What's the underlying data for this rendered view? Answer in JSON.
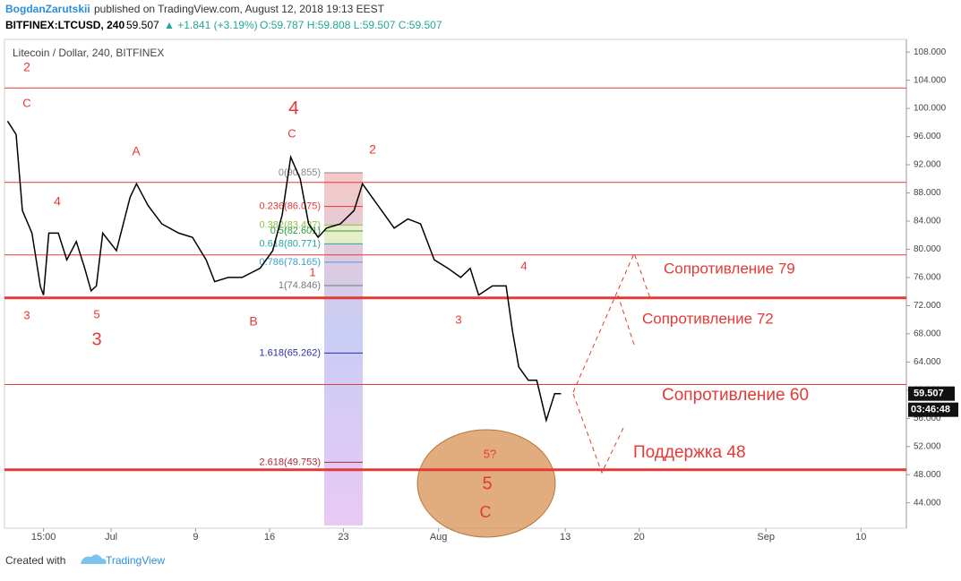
{
  "header": {
    "author": "BogdanZarutskii",
    "published": "published on TradingView.com, August 12, 2018 19:13 EEST",
    "symbol": "BITFINEX:LTCUSD, 240",
    "price": "59.507",
    "change": "▲ +1.841 (+3.19%)",
    "ohlc": "O:59.787 H:59.808 L:59.507 C:59.507"
  },
  "chart_data": {
    "type": "line",
    "title": "Litecoin / Dollar, 240, BITFINEX",
    "color": "#000000",
    "x": [
      -9.8,
      -9.0,
      -8.4,
      -7.5,
      -6.7,
      -6.4,
      -5.9,
      -5.0,
      -4.2,
      -3.3,
      -2.5,
      -1.9,
      -1.4,
      -0.8,
      0.5,
      1.8,
      2.4,
      3.5,
      4.8,
      6.4,
      7.7,
      9.0,
      9.8,
      11.1,
      12.4,
      14.1,
      15.3,
      16.2,
      17.0,
      17.9,
      18.7,
      19.6,
      20.4,
      21.7,
      23.0,
      23.8,
      24.7,
      25.9,
      26.8,
      28.1,
      29.3,
      30.6,
      31.9,
      33.1,
      34.0,
      34.8,
      36.1,
      37.4,
      38.0,
      38.6,
      39.5,
      40.3,
      41.2,
      42.0,
      42.6
    ],
    "values": [
      98.2,
      96.3,
      85.5,
      82.3,
      74.7,
      73.5,
      82.3,
      82.3,
      78.5,
      81.1,
      77.3,
      74.1,
      74.8,
      82.3,
      79.8,
      87.4,
      89.3,
      86.2,
      83.6,
      82.3,
      81.7,
      78.5,
      75.4,
      76.0,
      76.0,
      77.3,
      79.8,
      84.9,
      93.1,
      90.0,
      83.6,
      81.7,
      83.0,
      83.6,
      85.5,
      89.3,
      87.4,
      84.9,
      83.0,
      84.3,
      83.6,
      78.5,
      77.3,
      76.0,
      77.3,
      73.5,
      74.8,
      74.8,
      68.4,
      63.3,
      61.4,
      61.4,
      55.7,
      59.5,
      59.5
    ],
    "xlim": [
      -10.1,
      75.3
    ],
    "xticks": [
      {
        "value": -6.4,
        "label": "15:00"
      },
      {
        "value": 0,
        "label": "Jul"
      },
      {
        "value": 8,
        "label": "9"
      },
      {
        "value": 15,
        "label": "16"
      },
      {
        "value": 22,
        "label": "23"
      },
      {
        "value": 31,
        "label": "Aug"
      },
      {
        "value": 43,
        "label": "13"
      },
      {
        "value": 50,
        "label": "20"
      },
      {
        "value": 62,
        "label": "Sep"
      },
      {
        "value": 71,
        "label": "10"
      }
    ],
    "ylim": [
      40.4,
      109.8
    ],
    "yticks": [
      {
        "value": 44,
        "label": "44.000"
      },
      {
        "value": 48,
        "label": "48.000"
      },
      {
        "value": 52,
        "label": "52.000"
      },
      {
        "value": 56,
        "label": "56.000"
      },
      {
        "value": 60,
        "label": "60.000"
      },
      {
        "value": 64,
        "label": "64.000"
      },
      {
        "value": 68,
        "label": "68.000"
      },
      {
        "value": 72,
        "label": "72.000"
      },
      {
        "value": 76,
        "label": "76.000"
      },
      {
        "value": 80,
        "label": "80.000"
      },
      {
        "value": 84,
        "label": "84.000"
      },
      {
        "value": 88,
        "label": "88.000"
      },
      {
        "value": 92,
        "label": "92.000"
      },
      {
        "value": 96,
        "label": "96.000"
      },
      {
        "value": 100,
        "label": "100.000"
      },
      {
        "value": 104,
        "label": "104.000"
      },
      {
        "value": 108,
        "label": "108.000"
      }
    ],
    "levels": [
      {
        "value": 102.9,
        "thick": false
      },
      {
        "value": 89.5,
        "thick": false
      },
      {
        "value": 79.2,
        "thick": false
      },
      {
        "value": 60.8,
        "thick": false
      },
      {
        "value": 73.1,
        "thick": true
      },
      {
        "value": 48.7,
        "thick": true
      }
    ],
    "level_color": "#e53935",
    "fib": [
      {
        "label": "0(90.855)",
        "value": 90.855,
        "color": "#888888"
      },
      {
        "label": "0.236(86.075)",
        "value": 86.075,
        "color": "#e53935"
      },
      {
        "label": "0.382(83.437)",
        "value": 83.437,
        "color": "#8bc34a"
      },
      {
        "label": "0.5(82.601)",
        "value": 82.601,
        "color": "#2e9e3e"
      },
      {
        "label": "0.618(80.771)",
        "value": 80.771,
        "color": "#26a69a"
      },
      {
        "label": "0.786(78.165)",
        "value": 78.165,
        "color": "#3f9fd6"
      },
      {
        "label": "1(74.846)",
        "value": 74.846,
        "color": "#777777"
      },
      {
        "label": "1.618(65.262)",
        "value": 65.262,
        "color": "#2c2ca8"
      },
      {
        "label": "2.618(49.753)",
        "value": 49.753,
        "color": "#b0263a"
      }
    ],
    "last_price": {
      "value": 59.507,
      "label": "59.507"
    },
    "countdown": "03:46:48",
    "annotations": [
      "2",
      "C",
      "4",
      "3",
      "5",
      "3",
      "A",
      "B",
      "4",
      "C",
      "2",
      "1",
      "3",
      "4",
      "5?",
      "5",
      "C",
      "Сопротивление 79",
      "Сопротивление 72",
      "Сопротивление 60",
      "Поддержка 48"
    ]
  },
  "footer": {
    "created": "Created with",
    "brand": "TradingView"
  }
}
